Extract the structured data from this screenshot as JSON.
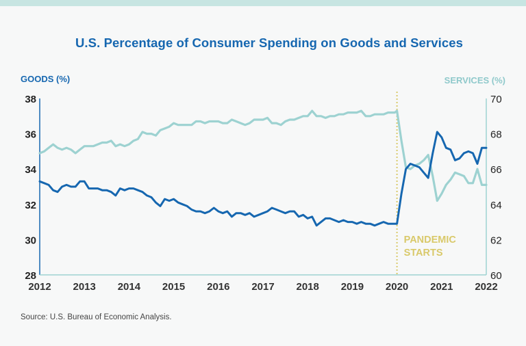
{
  "chart_data": {
    "type": "line",
    "title": "U.S. Percentage of Consumer Spending on Goods and Services",
    "y_left_label": "GOODS (%)",
    "y_right_label": "SERVICES (%)",
    "y_left_range": [
      28,
      38
    ],
    "y_right_range": [
      60,
      70
    ],
    "y_left_ticks": [
      "28",
      "30",
      "32",
      "34",
      "36",
      "38"
    ],
    "y_right_ticks": [
      "60",
      "62",
      "64",
      "66",
      "68",
      "70"
    ],
    "x_range": [
      2012,
      2022
    ],
    "x_ticks": [
      "2012",
      "2013",
      "2014",
      "2015",
      "2016",
      "2017",
      "2018",
      "2019",
      "2020",
      "2021",
      "2022"
    ],
    "grid": false,
    "colors": {
      "goods": "#1667b0",
      "services": "#9dd2d1",
      "annotation": "#d9c96a"
    },
    "series": [
      {
        "name": "GOODS (%)",
        "axis": "left",
        "x": [
          2012.0,
          2012.1,
          2012.2,
          2012.3,
          2012.4,
          2012.5,
          2012.6,
          2012.7,
          2012.8,
          2012.9,
          2013.0,
          2013.1,
          2013.2,
          2013.3,
          2013.4,
          2013.5,
          2013.6,
          2013.7,
          2013.8,
          2013.9,
          2014.0,
          2014.1,
          2014.2,
          2014.3,
          2014.4,
          2014.5,
          2014.6,
          2014.7,
          2014.8,
          2014.9,
          2015.0,
          2015.1,
          2015.2,
          2015.3,
          2015.4,
          2015.5,
          2015.6,
          2015.7,
          2015.8,
          2015.9,
          2016.0,
          2016.1,
          2016.2,
          2016.3,
          2016.4,
          2016.5,
          2016.6,
          2016.7,
          2016.8,
          2016.9,
          2017.0,
          2017.1,
          2017.2,
          2017.3,
          2017.4,
          2017.5,
          2017.6,
          2017.7,
          2017.8,
          2017.9,
          2018.0,
          2018.1,
          2018.2,
          2018.3,
          2018.4,
          2018.5,
          2018.6,
          2018.7,
          2018.8,
          2018.9,
          2019.0,
          2019.1,
          2019.2,
          2019.3,
          2019.4,
          2019.5,
          2019.6,
          2019.7,
          2019.8,
          2019.9,
          2019.95,
          2020.0,
          2020.1,
          2020.2,
          2020.3,
          2020.4,
          2020.5,
          2020.6,
          2020.7,
          2020.8,
          2020.9,
          2021.0,
          2021.1,
          2021.2,
          2021.3,
          2021.4,
          2021.5,
          2021.6,
          2021.7,
          2021.8,
          2021.9,
          2022.0
        ],
        "values": [
          33.3,
          33.2,
          33.1,
          32.8,
          32.7,
          33.0,
          33.1,
          33.0,
          33.0,
          33.3,
          33.3,
          32.9,
          32.9,
          32.9,
          32.8,
          32.8,
          32.7,
          32.5,
          32.9,
          32.8,
          32.9,
          32.9,
          32.8,
          32.7,
          32.5,
          32.4,
          32.1,
          31.9,
          32.3,
          32.2,
          32.3,
          32.1,
          32.0,
          31.9,
          31.7,
          31.6,
          31.6,
          31.5,
          31.6,
          31.8,
          31.6,
          31.5,
          31.6,
          31.3,
          31.5,
          31.5,
          31.4,
          31.5,
          31.3,
          31.4,
          31.5,
          31.6,
          31.8,
          31.7,
          31.6,
          31.5,
          31.6,
          31.6,
          31.3,
          31.4,
          31.2,
          31.3,
          30.8,
          31.0,
          31.2,
          31.2,
          31.1,
          31.0,
          31.1,
          31.0,
          31.0,
          30.9,
          31.0,
          30.9,
          30.9,
          30.8,
          30.9,
          31.0,
          30.9,
          30.9,
          30.9,
          30.9,
          32.6,
          34.0,
          34.3,
          34.2,
          34.1,
          33.8,
          33.5,
          34.9,
          36.1,
          35.8,
          35.2,
          35.1,
          34.5,
          34.6,
          34.9,
          35.0,
          34.9,
          34.3,
          35.2,
          35.2
        ],
        "_note_cutoff": 0
      },
      {
        "name": "SERVICES (%)",
        "axis": "right",
        "x": [
          2012.0,
          2012.1,
          2012.2,
          2012.3,
          2012.4,
          2012.5,
          2012.6,
          2012.7,
          2012.8,
          2012.9,
          2013.0,
          2013.1,
          2013.2,
          2013.3,
          2013.4,
          2013.5,
          2013.6,
          2013.7,
          2013.8,
          2013.9,
          2014.0,
          2014.1,
          2014.2,
          2014.3,
          2014.4,
          2014.5,
          2014.6,
          2014.7,
          2014.8,
          2014.9,
          2015.0,
          2015.1,
          2015.2,
          2015.3,
          2015.4,
          2015.5,
          2015.6,
          2015.7,
          2015.8,
          2015.9,
          2016.0,
          2016.1,
          2016.2,
          2016.3,
          2016.4,
          2016.5,
          2016.6,
          2016.7,
          2016.8,
          2016.9,
          2017.0,
          2017.1,
          2017.2,
          2017.3,
          2017.4,
          2017.5,
          2017.6,
          2017.7,
          2017.8,
          2017.9,
          2018.0,
          2018.1,
          2018.2,
          2018.3,
          2018.4,
          2018.5,
          2018.6,
          2018.7,
          2018.8,
          2018.9,
          2019.0,
          2019.1,
          2019.2,
          2019.3,
          2019.4,
          2019.5,
          2019.6,
          2019.7,
          2019.8,
          2019.9,
          2019.95,
          2020.0,
          2020.1,
          2020.2,
          2020.3,
          2020.4,
          2020.5,
          2020.6,
          2020.7,
          2020.8,
          2020.9,
          2021.0,
          2021.1,
          2021.2,
          2021.3,
          2021.4,
          2021.5,
          2021.6,
          2021.7,
          2021.8,
          2021.9,
          2022.0
        ],
        "values": [
          66.9,
          67.0,
          67.2,
          67.4,
          67.2,
          67.1,
          67.2,
          67.1,
          66.9,
          67.1,
          67.3,
          67.3,
          67.3,
          67.4,
          67.5,
          67.5,
          67.6,
          67.3,
          67.4,
          67.3,
          67.4,
          67.6,
          67.7,
          68.1,
          68.0,
          68.0,
          67.9,
          68.2,
          68.3,
          68.4,
          68.6,
          68.5,
          68.5,
          68.5,
          68.5,
          68.7,
          68.7,
          68.6,
          68.7,
          68.7,
          68.7,
          68.6,
          68.6,
          68.8,
          68.7,
          68.6,
          68.5,
          68.6,
          68.8,
          68.8,
          68.8,
          68.9,
          68.6,
          68.6,
          68.5,
          68.7,
          68.8,
          68.8,
          68.9,
          69.0,
          69.0,
          69.3,
          69.0,
          69.0,
          68.9,
          69.0,
          69.0,
          69.1,
          69.1,
          69.2,
          69.2,
          69.2,
          69.3,
          69.0,
          69.0,
          69.1,
          69.1,
          69.1,
          69.2,
          69.2,
          69.2,
          69.3,
          67.6,
          66.1,
          66.0,
          66.2,
          66.3,
          66.5,
          66.8,
          65.6,
          64.2,
          64.6,
          65.1,
          65.4,
          65.8,
          65.7,
          65.6,
          65.2,
          65.2,
          66.0,
          65.1,
          65.1
        ]
      }
    ],
    "annotations": [
      {
        "text": "PANDEMIC",
        "x": 2020.0
      },
      {
        "text": "STARTS",
        "x": 2020.0
      }
    ]
  },
  "source_text": "Source: U.S. Bureau of Economic Analysis."
}
